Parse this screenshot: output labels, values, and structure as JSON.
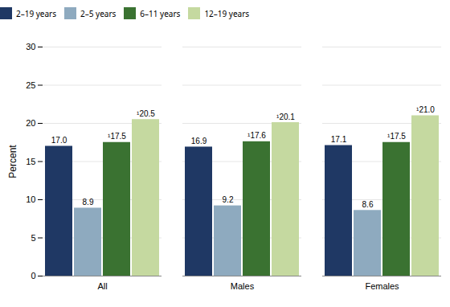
{
  "chart_data": {
    "type": "bar",
    "categories": [
      "All",
      "Males",
      "Females"
    ],
    "series": [
      {
        "name": "2–19 years",
        "color": "#1f3864",
        "values": [
          17.0,
          16.9,
          17.1
        ],
        "value_labels": [
          "17.0",
          "16.9",
          "17.1"
        ]
      },
      {
        "name": "2–5 years",
        "color": "#8eaabf",
        "values": [
          8.9,
          9.2,
          8.6
        ],
        "value_labels": [
          "8.9",
          "9.2",
          "8.6"
        ]
      },
      {
        "name": "6–11 years",
        "color": "#3a7231",
        "values": [
          17.5,
          17.6,
          17.5
        ],
        "value_labels": [
          "¹17.5",
          "¹17.6",
          "¹17.5"
        ]
      },
      {
        "name": "12–19 years",
        "color": "#c5d9a0",
        "values": [
          20.5,
          20.1,
          21.0
        ],
        "value_labels": [
          "¹20.5",
          "¹20.1",
          "¹21.0"
        ]
      }
    ],
    "ylabel": "Percent",
    "ylim": [
      0,
      30
    ],
    "yticks": [
      0,
      5,
      10,
      15,
      20,
      25,
      30
    ],
    "grid": true,
    "legend": "top",
    "data_labels": true
  }
}
